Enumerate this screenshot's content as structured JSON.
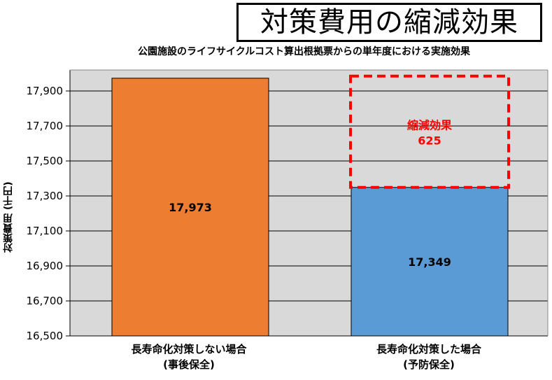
{
  "chart_data": {
    "type": "bar",
    "title": "対策費用の縮減効果",
    "subtitle": "公園施設のライフサイクルコスト算出根拠票からの単年度における実施効果",
    "ylabel": "対策費用 (千円)",
    "ylim": [
      16500,
      17973
    ],
    "yticks": [
      16500,
      16700,
      16900,
      17100,
      17300,
      17500,
      17700,
      17900
    ],
    "ytick_labels": [
      "16,500",
      "16,700",
      "16,900",
      "17,100",
      "17,300",
      "17,500",
      "17,700",
      "17,900"
    ],
    "categories": [
      {
        "line1": "長寿命化対策しない場合",
        "line2": "(事後保全)"
      },
      {
        "line1": "長寿命化対策した場合",
        "line2": "(予防保全)"
      }
    ],
    "values": [
      17973,
      17349
    ],
    "value_labels": [
      "17,973",
      "17,349"
    ],
    "bar_colors": [
      "#ED7D31",
      "#5B9BD5"
    ],
    "annotation": {
      "text_line1": "縮減効果",
      "text_line2": "625",
      "color": "#FF0000",
      "from": 17349,
      "to": 17973
    },
    "grid": true,
    "plot_background": "#D9D9D9"
  }
}
